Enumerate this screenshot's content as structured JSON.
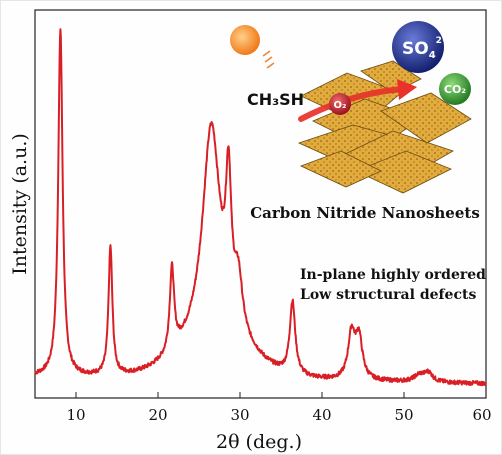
{
  "chart_data": {
    "type": "line",
    "xlabel": "2θ (deg.)",
    "ylabel": "Intensity (a.u.)",
    "xlim": [
      5,
      60
    ],
    "x_ticks": [
      10,
      20,
      30,
      40,
      50,
      60
    ],
    "y_tick_labels": "none",
    "grid": false,
    "legend": "none",
    "line_color": "#d91f26",
    "baseline": 0.0,
    "background_slope": 0.02,
    "series": [
      {
        "peaks": [
          {
            "x": 8.1,
            "height": 1.0,
            "width": 0.32
          },
          {
            "x": 14.2,
            "height": 0.37,
            "width": 0.28
          },
          {
            "x": 21.7,
            "height": 0.24,
            "width": 0.32
          },
          {
            "x": 26.5,
            "height": 0.62,
            "width": 1.3
          },
          {
            "x": 28.6,
            "height": 0.38,
            "width": 0.4
          },
          {
            "x": 29.8,
            "height": 0.15,
            "width": 0.6
          },
          {
            "x": 36.4,
            "height": 0.21,
            "width": 0.4
          },
          {
            "x": 43.6,
            "height": 0.13,
            "width": 0.5
          },
          {
            "x": 44.5,
            "height": 0.12,
            "width": 0.5
          },
          {
            "x": 51.9,
            "height": 0.02,
            "width": 0.8
          },
          {
            "x": 53.0,
            "height": 0.025,
            "width": 0.6
          }
        ],
        "broad_hump": {
          "x": 27.0,
          "height": 0.1,
          "width": 6.0
        }
      }
    ],
    "annotations": [
      "In-plane highly ordered",
      "Low structural defects"
    ]
  },
  "graphic": {
    "reactant": "CH₃SH",
    "oxidant": "O₂",
    "product_1": "SO",
    "product_1_sub": "4",
    "product_1_sup": "2−",
    "product_2": "CO₂",
    "caption": "Carbon Nitride Nanosheets",
    "sun_color": "#f28c28",
    "sheet_color": "#e3ab3c",
    "arrow_color": "#e8322a",
    "o2_color": "#c81c2a",
    "so4_color": "#1f2f8c",
    "co2_color": "#3a9a3a"
  }
}
